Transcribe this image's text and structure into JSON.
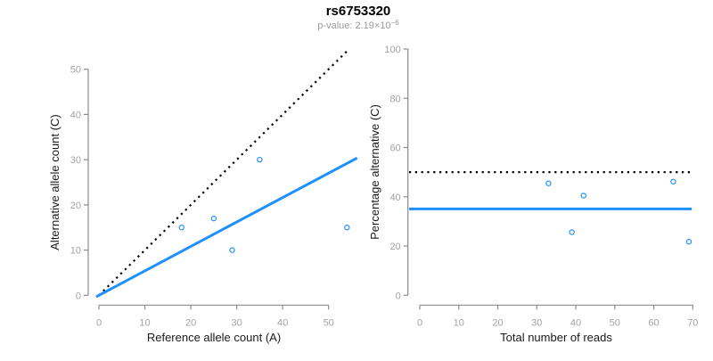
{
  "header": {
    "title": "rs6753320",
    "pvalue_text": "p-value: 2.19×10",
    "pvalue_exponent": "−6"
  },
  "style": {
    "accent_blue": "#1E90FF",
    "dotted_line_color": "#000000",
    "axis_color": "#8b8b8b",
    "tick_label_color": "#a3a3a3",
    "axis_title_color": "#1a1a1a",
    "subtitle_color": "#9b9b9b",
    "background": "#ffffff"
  },
  "chart_data": [
    {
      "type": "scatter",
      "panel": "left",
      "xlabel": "Reference allele count (A)",
      "ylabel": "Alternative allele count (C)",
      "xlim": [
        0,
        54
      ],
      "ylim": [
        0,
        54
      ],
      "xticks": [
        0,
        10,
        20,
        30,
        40,
        50
      ],
      "yticks": [
        0,
        10,
        20,
        30,
        40,
        50
      ],
      "grid": false,
      "points": [
        {
          "x": 18,
          "y": 15
        },
        {
          "x": 25,
          "y": 17
        },
        {
          "x": 29,
          "y": 10
        },
        {
          "x": 35,
          "y": 30
        },
        {
          "x": 54,
          "y": 15
        }
      ],
      "lines": [
        {
          "name": "identity-line",
          "style": "dotted",
          "color": "#000000",
          "x1": 0,
          "y1": 0,
          "x2": 54.5,
          "y2": 54.5
        },
        {
          "name": "fit-line",
          "style": "solid",
          "color": "#1E90FF",
          "x1": -0.6,
          "y1": -0.32,
          "x2": 56.2,
          "y2": 30.37
        }
      ]
    },
    {
      "type": "scatter",
      "panel": "right",
      "xlabel": "Total number of reads",
      "ylabel": "Percentage alternative (C)",
      "xlim": [
        0,
        70
      ],
      "ylim": [
        0,
        100
      ],
      "xticks": [
        0,
        10,
        20,
        30,
        40,
        50,
        60,
        70
      ],
      "yticks": [
        0,
        20,
        40,
        60,
        80,
        100
      ],
      "grid": false,
      "points": [
        {
          "x": 33,
          "y": 45.45
        },
        {
          "x": 39,
          "y": 25.64
        },
        {
          "x": 42,
          "y": 40.48
        },
        {
          "x": 65,
          "y": 46.15
        },
        {
          "x": 69,
          "y": 21.74
        }
      ],
      "lines": [
        {
          "name": "expected-50pct-line",
          "style": "dotted",
          "color": "#000000",
          "hline": 50
        },
        {
          "name": "mean-pct-line",
          "style": "solid",
          "color": "#1E90FF",
          "hline": 35.1
        }
      ]
    }
  ]
}
